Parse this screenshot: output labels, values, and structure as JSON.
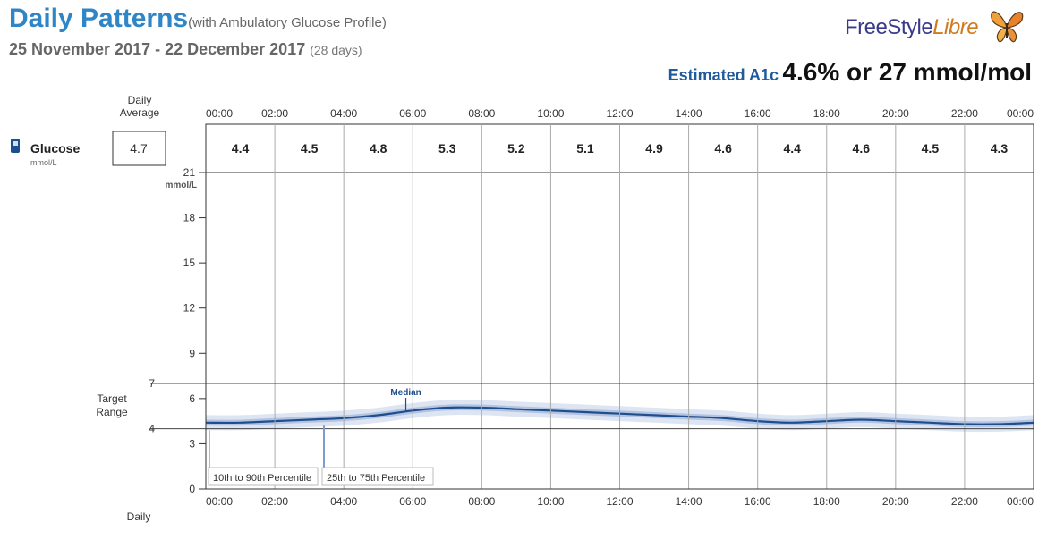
{
  "header": {
    "title": "Daily Patterns",
    "subtitle": "(with Ambulatory Glucose Profile)",
    "date_range": "25 November 2017 - 22 December 2017",
    "days": "(28 days)",
    "a1c_label": "Estimated A1c",
    "a1c_value": "4.6% or 27 mmol/mol"
  },
  "logo": {
    "part1": "FreeStyle",
    "part2": "Libre",
    "icon": "butterfly-icon"
  },
  "chart_data": {
    "type": "line",
    "daily_average_label": "Daily Average",
    "glucose_label": "Glucose",
    "glucose_unit": "mmol/L",
    "glucose_icon": "glucose-meter-icon",
    "daily_average_value": "4.7",
    "time_ticks": [
      "00:00",
      "02:00",
      "04:00",
      "06:00",
      "08:00",
      "10:00",
      "12:00",
      "14:00",
      "16:00",
      "18:00",
      "20:00",
      "22:00",
      "00:00"
    ],
    "bin_averages": [
      "4.4",
      "4.5",
      "4.8",
      "5.3",
      "5.2",
      "5.1",
      "4.9",
      "4.6",
      "4.4",
      "4.6",
      "4.5",
      "4.3"
    ],
    "y_ticks": [
      0,
      3,
      6,
      9,
      12,
      15,
      18,
      21
    ],
    "y_unit": "mmol/L",
    "ylim": [
      0,
      21
    ],
    "xlim": [
      0,
      24
    ],
    "target_range": {
      "label": "Target Range",
      "low": 4,
      "high": 7,
      "low_label": "4",
      "high_label": "7"
    },
    "x_hours": [
      0,
      1,
      2,
      3,
      4,
      5,
      6,
      7,
      8,
      9,
      10,
      11,
      12,
      13,
      14,
      15,
      16,
      17,
      18,
      19,
      20,
      21,
      22,
      23,
      24
    ],
    "median": [
      4.4,
      4.4,
      4.5,
      4.6,
      4.7,
      4.9,
      5.2,
      5.4,
      5.4,
      5.3,
      5.2,
      5.1,
      5.0,
      4.9,
      4.8,
      4.7,
      4.5,
      4.4,
      4.5,
      4.6,
      4.5,
      4.4,
      4.3,
      4.3,
      4.4
    ],
    "p25": [
      4.2,
      4.2,
      4.3,
      4.4,
      4.5,
      4.7,
      5.0,
      5.2,
      5.2,
      5.1,
      5.0,
      4.9,
      4.8,
      4.7,
      4.6,
      4.5,
      4.3,
      4.2,
      4.3,
      4.4,
      4.3,
      4.2,
      4.1,
      4.1,
      4.2
    ],
    "p75": [
      4.6,
      4.6,
      4.7,
      4.8,
      4.9,
      5.1,
      5.4,
      5.6,
      5.6,
      5.5,
      5.4,
      5.3,
      5.2,
      5.1,
      5.0,
      4.9,
      4.7,
      4.6,
      4.7,
      4.8,
      4.7,
      4.6,
      4.5,
      4.5,
      4.6
    ],
    "p10": [
      3.9,
      3.9,
      4.0,
      4.1,
      4.2,
      4.4,
      4.7,
      4.9,
      4.9,
      4.8,
      4.7,
      4.6,
      4.5,
      4.4,
      4.3,
      4.2,
      4.0,
      3.9,
      4.0,
      4.1,
      4.0,
      3.9,
      3.8,
      3.8,
      3.9
    ],
    "p90": [
      4.9,
      4.9,
      5.0,
      5.1,
      5.2,
      5.4,
      5.7,
      5.9,
      5.9,
      5.8,
      5.7,
      5.6,
      5.5,
      5.4,
      5.3,
      5.2,
      5.0,
      4.9,
      5.0,
      5.1,
      5.0,
      4.9,
      4.8,
      4.8,
      4.9
    ],
    "annotations": {
      "median": "Median",
      "p10_90": "10th to 90th Percentile",
      "p25_75": "25th to 75th Percentile"
    },
    "footer_label": "Daily",
    "colors": {
      "median": "#1f4e8c",
      "band_inner": "#b3c3e2",
      "band_outer": "#dde5f3",
      "grid": "#aaaaaa"
    }
  }
}
